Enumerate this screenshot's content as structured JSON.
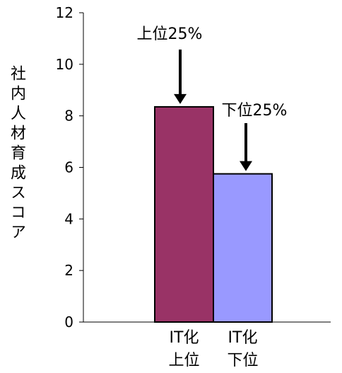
{
  "chart_data": {
    "type": "bar",
    "categories": [
      [
        "IT化",
        "上位"
      ],
      [
        "IT化",
        "下位"
      ]
    ],
    "values": [
      8.35,
      5.75
    ],
    "ylabel": "社内人材育成スコア",
    "xlabel": "",
    "ylim": [
      0,
      12
    ],
    "yticks": [
      0,
      2,
      4,
      6,
      8,
      10,
      12
    ],
    "grid": false,
    "legend": "none",
    "colors": [
      "#993366",
      "#9999ff"
    ],
    "annotations": [
      {
        "text": "上位25%",
        "category_index": 0
      },
      {
        "text": "下位25%",
        "category_index": 1
      }
    ]
  }
}
